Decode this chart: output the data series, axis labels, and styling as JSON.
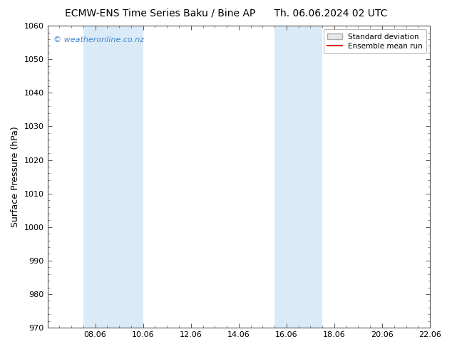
{
  "title_left": "ECMW-ENS Time Series Baku / Bine AP",
  "title_right": "Th. 06.06.2024 02 UTC",
  "ylabel": "Surface Pressure (hPa)",
  "ylim": [
    970,
    1060
  ],
  "yticks": [
    970,
    980,
    990,
    1000,
    1010,
    1020,
    1030,
    1040,
    1050,
    1060
  ],
  "xlim": [
    0,
    16
  ],
  "xtick_labels": [
    "08.06",
    "10.06",
    "12.06",
    "14.06",
    "16.06",
    "18.06",
    "20.06",
    "22.06"
  ],
  "xtick_positions": [
    2,
    4,
    6,
    8,
    10,
    12,
    14,
    16
  ],
  "shaded_bands": [
    {
      "x_start": 1.5,
      "x_end": 4.0
    },
    {
      "x_start": 9.5,
      "x_end": 11.5
    }
  ],
  "shaded_color": "#daeaf7",
  "watermark_text": "© weatheronline.co.nz",
  "watermark_color": "#4488cc",
  "legend_std_label": "Standard deviation",
  "legend_mean_label": "Ensemble mean run",
  "legend_std_facecolor": "#e8e8e8",
  "legend_std_edgecolor": "#aaaaaa",
  "legend_mean_color": "#dd2200",
  "bg_color": "#ffffff",
  "spine_color": "#555555",
  "tick_color": "#555555",
  "title_fontsize": 10,
  "label_fontsize": 9,
  "tick_fontsize": 8,
  "watermark_fontsize": 8
}
